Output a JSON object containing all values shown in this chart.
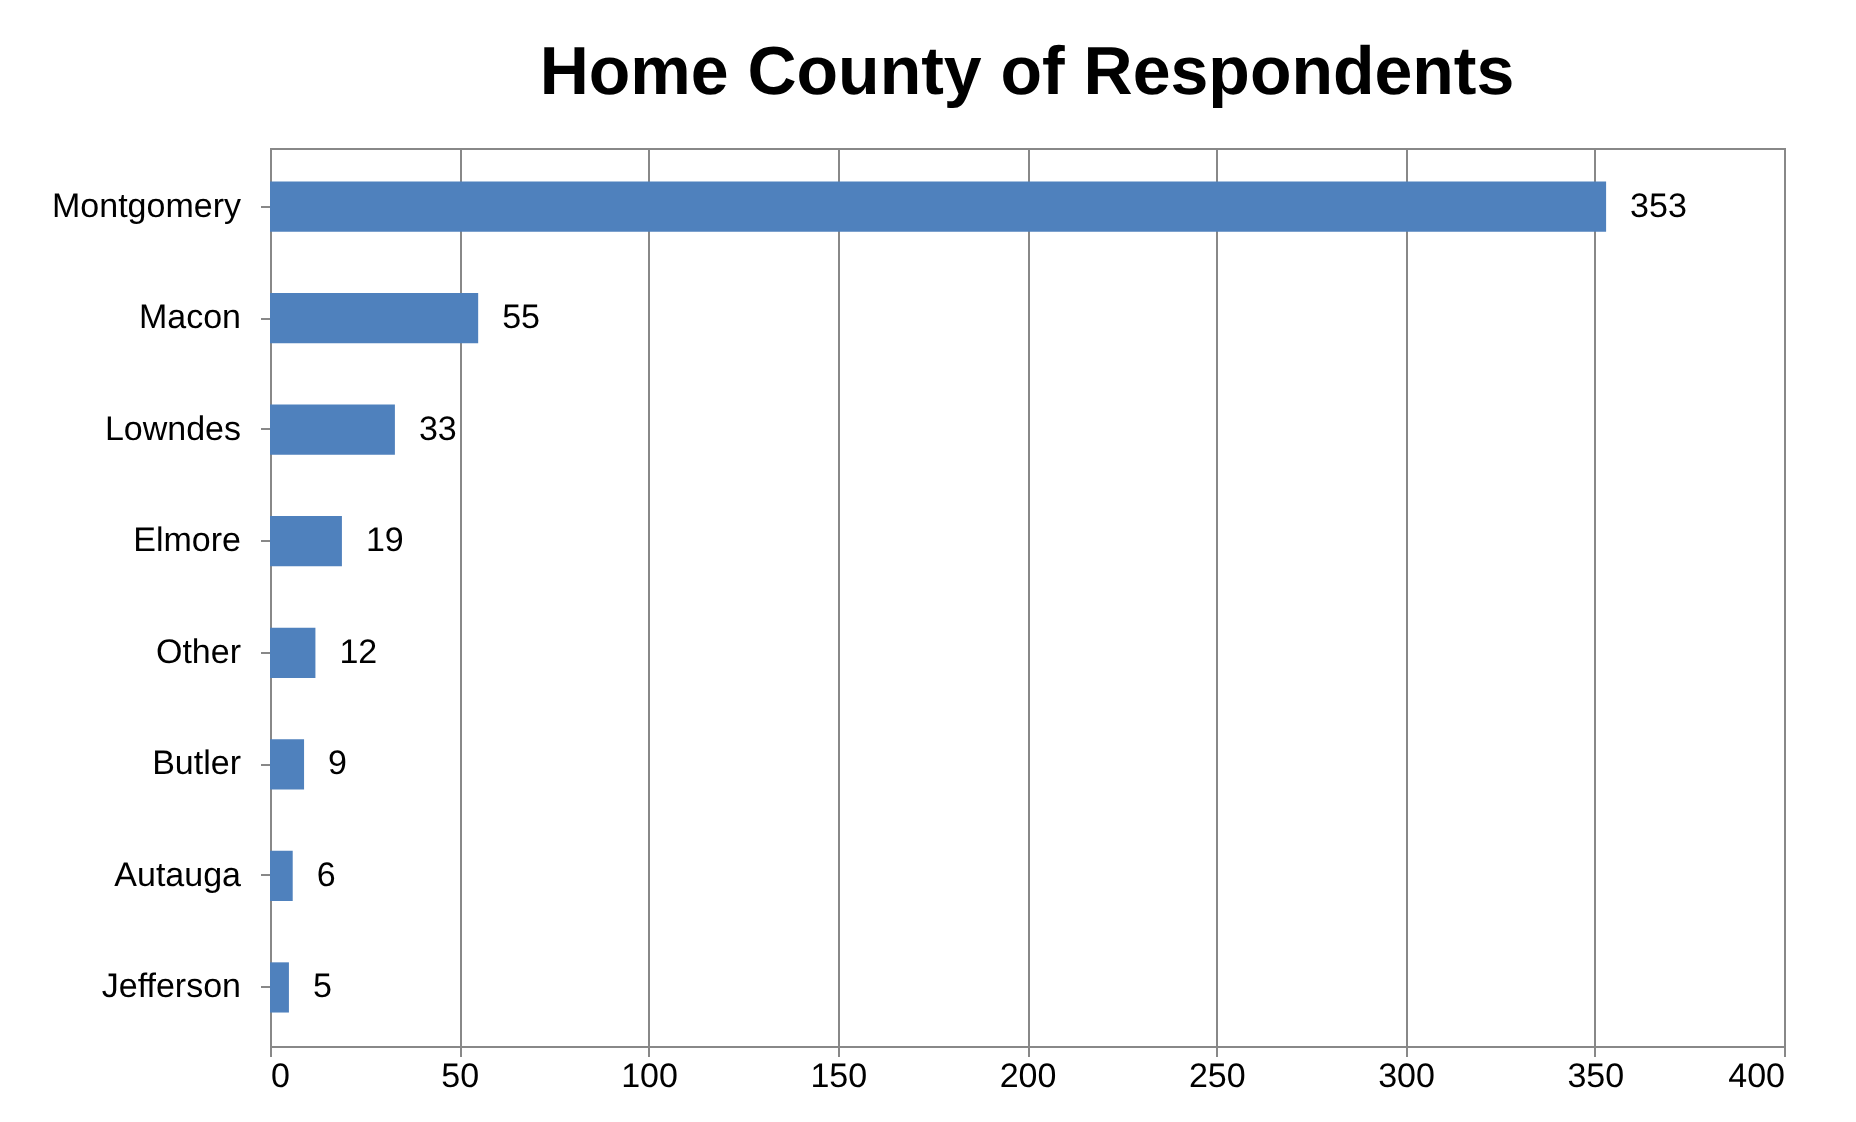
{
  "chart_data": {
    "type": "bar",
    "orientation": "horizontal",
    "title": "Home County of Respondents",
    "categories": [
      "Montgomery",
      "Macon",
      "Lowndes",
      "Elmore",
      "Other",
      "Butler",
      "Autauga",
      "Jefferson"
    ],
    "values": [
      353,
      55,
      33,
      19,
      12,
      9,
      6,
      5
    ],
    "color": "#4f81bd",
    "xlim": [
      0,
      400
    ],
    "xticks": [
      0,
      50,
      100,
      150,
      200,
      250,
      300,
      350,
      400
    ],
    "grid": "x",
    "data_labels": true
  }
}
